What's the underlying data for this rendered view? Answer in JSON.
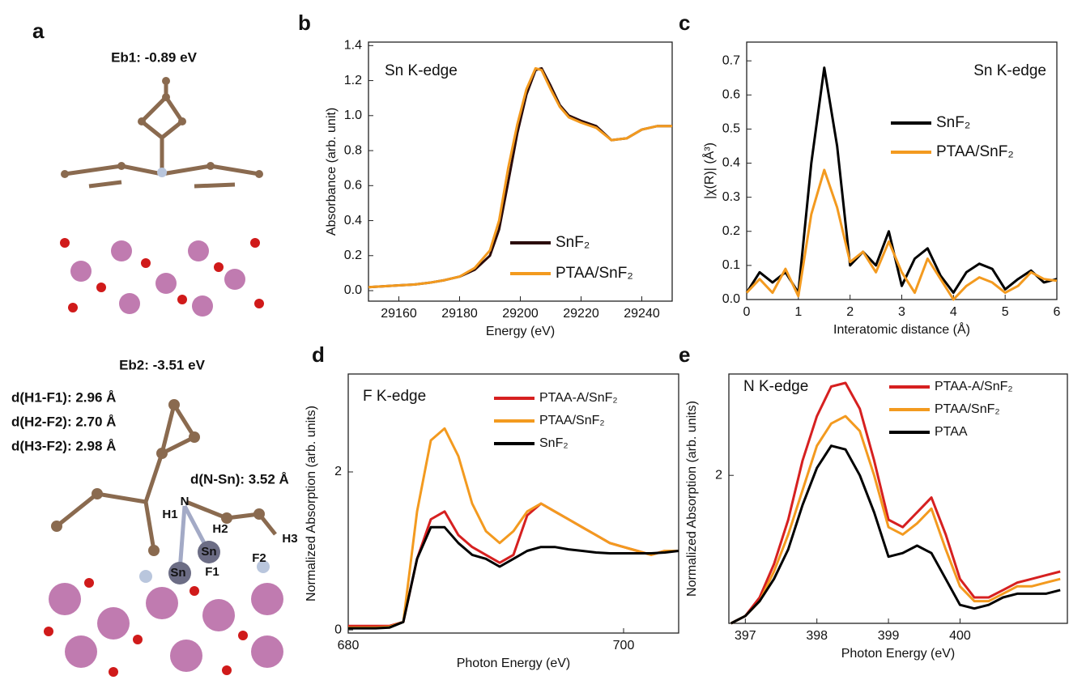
{
  "panel_a": {
    "panel_label": "a",
    "energy_1": "Eb1: -0.89 eV",
    "energy_2": "Eb2: -3.51 eV",
    "distances": [
      "d(H1-F1): 2.96 Å",
      "d(H2-F2): 2.70 Å",
      "d(H3-F2): 2.98 Å",
      "d(N-Sn): 3.52 Å"
    ],
    "atoms": [
      "N",
      "H1",
      "H2",
      "H3",
      "Sn",
      "Sn",
      "F1",
      "F2"
    ]
  },
  "chart_data": [
    {
      "type": "line",
      "panel_label": "b",
      "annotation": "Sn K-edge",
      "x_label": "Energy (eV)",
      "y_label": "Absorbance (arb. unit)",
      "xlim": [
        29150,
        29250
      ],
      "ylim": [
        -0.06,
        1.42
      ],
      "xticks": [
        29160,
        29180,
        29200,
        29220,
        29240
      ],
      "yticks": [
        {
          "value": 0,
          "label": "0.0"
        },
        {
          "value": 0.2,
          "label": "0.2"
        },
        {
          "value": 0.4,
          "label": "0.4"
        },
        {
          "value": 0.6,
          "label": "0.6"
        },
        {
          "value": 0.8,
          "label": "0.8"
        },
        {
          "value": 1.0,
          "label": "1.0"
        },
        {
          "value": 1.2,
          "label": "1.2"
        },
        {
          "value": 1.4,
          "label": "1.4"
        }
      ],
      "x": [
        29150,
        29155,
        29160,
        29165,
        29170,
        29175,
        29180,
        29185,
        29190,
        29193,
        29196,
        29199,
        29202,
        29205,
        29207,
        29210,
        29213,
        29216,
        29220,
        29225,
        29230,
        29235,
        29240,
        29245,
        29250
      ],
      "series": [
        {
          "name": "SnF₂",
          "color": "#2a0b0b",
          "values": [
            0.02,
            0.025,
            0.03,
            0.035,
            0.045,
            0.06,
            0.08,
            0.12,
            0.2,
            0.35,
            0.62,
            0.9,
            1.12,
            1.26,
            1.27,
            1.17,
            1.06,
            1.0,
            0.97,
            0.94,
            0.86,
            0.87,
            0.92,
            0.94,
            0.94
          ]
        },
        {
          "name": "PTAA/SnF₂",
          "color": "#f39a1f",
          "values": [
            0.02,
            0.025,
            0.03,
            0.035,
            0.045,
            0.06,
            0.08,
            0.13,
            0.23,
            0.4,
            0.7,
            0.95,
            1.15,
            1.27,
            1.26,
            1.15,
            1.05,
            0.99,
            0.96,
            0.93,
            0.86,
            0.87,
            0.92,
            0.94,
            0.94
          ]
        }
      ]
    },
    {
      "type": "line",
      "panel_label": "c",
      "annotation": "Sn K-edge",
      "x_label": "Interatomic distance (Å)",
      "y_label": "|χ(R)| (Å³)",
      "xlim": [
        0,
        6
      ],
      "ylim": [
        0,
        0.755
      ],
      "xticks": [
        0,
        1,
        2,
        3,
        4,
        5,
        6
      ],
      "yticks": [
        {
          "value": 0,
          "label": "0.0"
        },
        {
          "value": 0.1,
          "label": "0.1"
        },
        {
          "value": 0.2,
          "label": "0.2"
        },
        {
          "value": 0.3,
          "label": "0.3"
        },
        {
          "value": 0.4,
          "label": "0.4"
        },
        {
          "value": 0.5,
          "label": "0.5"
        },
        {
          "value": 0.6,
          "label": "0.6"
        },
        {
          "value": 0.7,
          "label": "0.7"
        }
      ],
      "x": [
        0,
        0.25,
        0.5,
        0.75,
        1.0,
        1.25,
        1.5,
        1.75,
        2.0,
        2.25,
        2.5,
        2.75,
        3.0,
        3.25,
        3.5,
        3.75,
        4.0,
        4.25,
        4.5,
        4.75,
        5.0,
        5.25,
        5.5,
        5.75,
        6
      ],
      "series": [
        {
          "name": "SnF₂",
          "color": "#000000",
          "values": [
            0.02,
            0.08,
            0.05,
            0.08,
            0.02,
            0.4,
            0.68,
            0.45,
            0.1,
            0.14,
            0.1,
            0.2,
            0.04,
            0.12,
            0.15,
            0.07,
            0.02,
            0.08,
            0.105,
            0.09,
            0.03,
            0.06,
            0.085,
            0.05,
            0.06
          ]
        },
        {
          "name": "PTAA/SnF₂",
          "color": "#f39a1f",
          "values": [
            0.02,
            0.06,
            0.02,
            0.09,
            0.01,
            0.25,
            0.38,
            0.27,
            0.11,
            0.14,
            0.08,
            0.17,
            0.08,
            0.02,
            0.12,
            0.06,
            0.0,
            0.04,
            0.065,
            0.05,
            0.02,
            0.04,
            0.08,
            0.06,
            0.055
          ]
        }
      ]
    },
    {
      "type": "line",
      "panel_label": "d",
      "annotation": "F K-edge",
      "x_label": "Photon Energy (eV)",
      "y_label": "Normalized Absorption (arb. units)",
      "xlim": [
        680,
        704
      ],
      "ylim": [
        -0.04,
        3.24
      ],
      "xticks": [
        680,
        700
      ],
      "yticks": [
        0,
        2
      ],
      "x": [
        680,
        681,
        682,
        683,
        684,
        685,
        686,
        687,
        688,
        689,
        690,
        691,
        692,
        693,
        694,
        695,
        696,
        697,
        698,
        699,
        700,
        701,
        702,
        703,
        704
      ],
      "series": [
        {
          "name": "PTAA-A/SnF₂",
          "color": "#d62020",
          "values": [
            0.05,
            0.05,
            0.05,
            0.05,
            0.1,
            0.9,
            1.4,
            1.5,
            1.2,
            1.05,
            0.95,
            0.85,
            0.95,
            1.45,
            1.6,
            1.5,
            1.4,
            1.3,
            1.2,
            1.1,
            1.05,
            1.0,
            0.95,
            1.0,
            1.0
          ]
        },
        {
          "name": "PTAA/SnF₂",
          "color": "#f39a1f",
          "values": [
            0.03,
            0.03,
            0.03,
            0.04,
            0.1,
            1.5,
            2.4,
            2.55,
            2.2,
            1.6,
            1.25,
            1.1,
            1.25,
            1.5,
            1.6,
            1.5,
            1.4,
            1.3,
            1.2,
            1.1,
            1.05,
            1.0,
            0.95,
            1.0,
            1.0
          ]
        },
        {
          "name": "SnF₂",
          "color": "#000000",
          "values": [
            0.02,
            0.02,
            0.02,
            0.03,
            0.1,
            0.9,
            1.3,
            1.3,
            1.1,
            0.95,
            0.9,
            0.8,
            0.9,
            1.0,
            1.05,
            1.05,
            1.02,
            1.0,
            0.98,
            0.97,
            0.97,
            0.97,
            0.97,
            0.98,
            1.0
          ]
        }
      ]
    },
    {
      "type": "line",
      "panel_label": "e",
      "annotation": "N K-edge",
      "x_label": "Photon Energy (eV)",
      "y_label": "Normalized Absorption (arb. units)",
      "xlim": [
        396.77,
        401.5
      ],
      "ylim": [
        0,
        3.37
      ],
      "xticks": [
        397,
        398,
        399,
        400
      ],
      "yticks": [
        2
      ],
      "x": [
        396.8,
        397.0,
        397.2,
        397.4,
        397.6,
        397.8,
        398.0,
        398.2,
        398.4,
        398.6,
        398.8,
        399.0,
        399.2,
        399.4,
        399.6,
        399.8,
        400.0,
        400.2,
        400.4,
        400.6,
        400.8,
        401.0,
        401.2,
        401.4
      ],
      "series": [
        {
          "name": "PTAA-A/SnF₂",
          "color": "#d62020",
          "values": [
            0.0,
            0.1,
            0.35,
            0.8,
            1.4,
            2.2,
            2.8,
            3.2,
            3.25,
            2.9,
            2.2,
            1.4,
            1.3,
            1.5,
            1.7,
            1.2,
            0.6,
            0.35,
            0.35,
            0.45,
            0.55,
            0.6,
            0.65,
            0.7
          ]
        },
        {
          "name": "PTAA/SnF₂",
          "color": "#f39a1f",
          "values": [
            0.0,
            0.1,
            0.3,
            0.7,
            1.2,
            1.8,
            2.4,
            2.7,
            2.8,
            2.6,
            2.0,
            1.3,
            1.2,
            1.35,
            1.55,
            1.0,
            0.5,
            0.3,
            0.3,
            0.4,
            0.5,
            0.5,
            0.55,
            0.6
          ]
        },
        {
          "name": "PTAA",
          "color": "#000000",
          "values": [
            0.0,
            0.1,
            0.3,
            0.6,
            1.0,
            1.6,
            2.1,
            2.4,
            2.35,
            2.0,
            1.5,
            0.9,
            0.95,
            1.05,
            0.95,
            0.6,
            0.25,
            0.2,
            0.25,
            0.35,
            0.4,
            0.4,
            0.4,
            0.45
          ]
        }
      ]
    }
  ]
}
